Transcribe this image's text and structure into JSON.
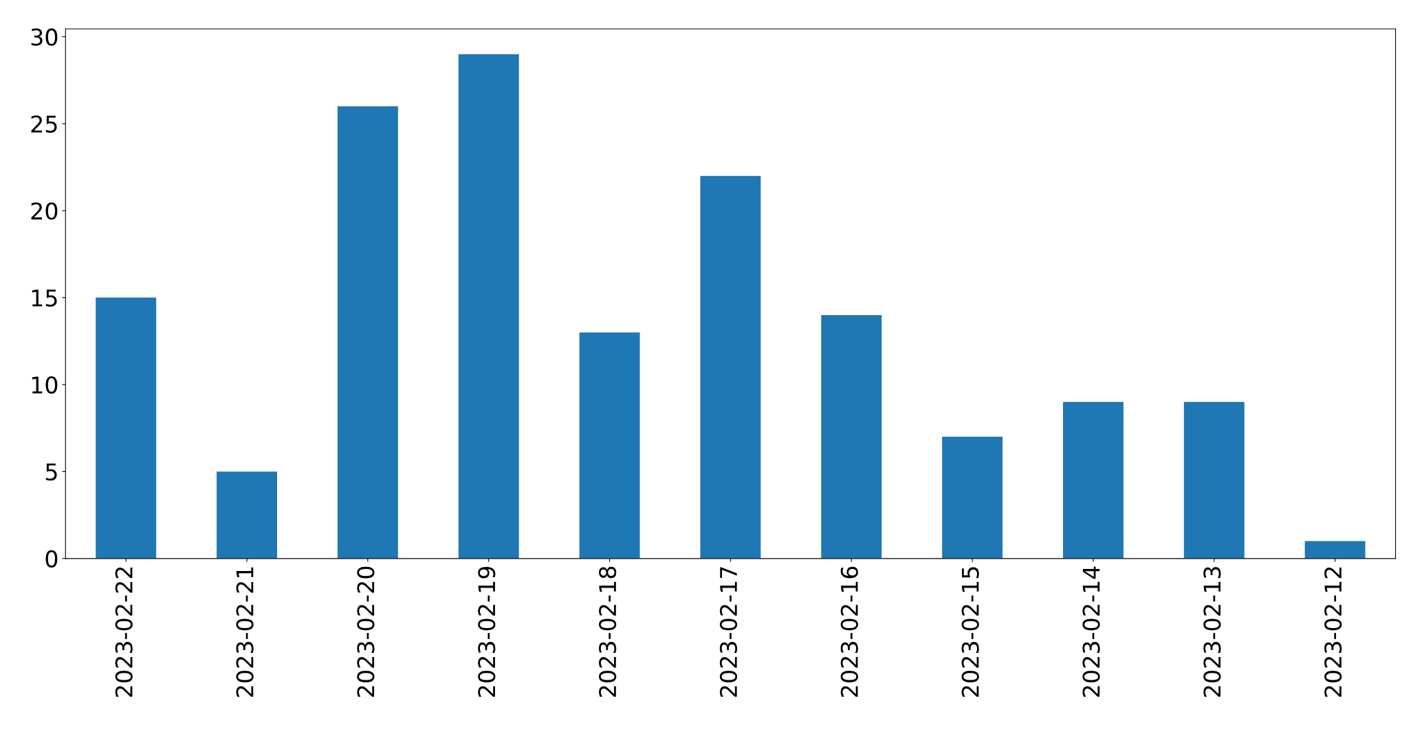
{
  "chart_data": {
    "type": "bar",
    "categories": [
      "2023-02-22",
      "2023-02-21",
      "2023-02-20",
      "2023-02-19",
      "2023-02-18",
      "2023-02-17",
      "2023-02-16",
      "2023-02-15",
      "2023-02-14",
      "2023-02-13",
      "2023-02-12"
    ],
    "values": [
      15,
      5,
      26,
      29,
      13,
      22,
      14,
      7,
      9,
      9,
      1
    ],
    "color": "#1f77b4",
    "ylim": [
      0,
      30.45
    ],
    "yticks": [
      0,
      5,
      10,
      15,
      20,
      25,
      30
    ],
    "grid": false,
    "legend": false
  }
}
